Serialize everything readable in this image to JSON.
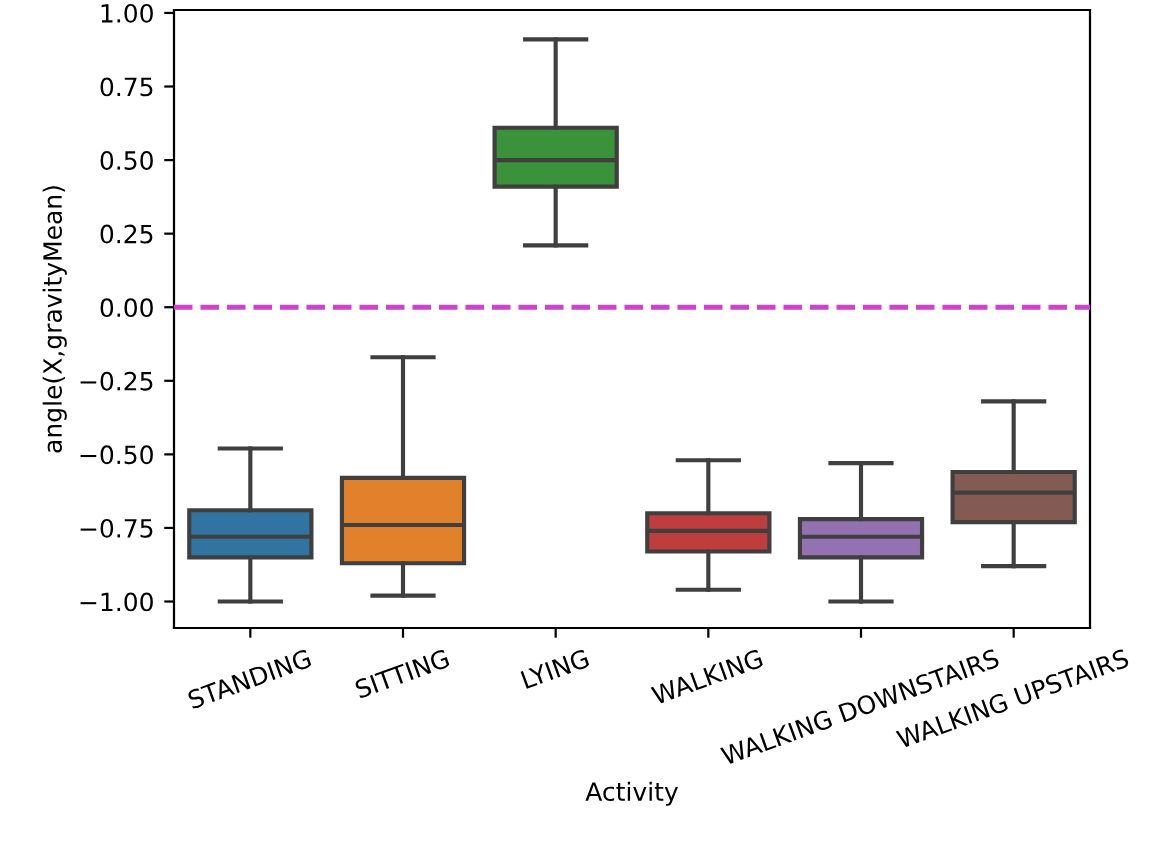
{
  "chart_data": {
    "type": "box",
    "xlabel": "Activity",
    "ylabel": "angle(X,gravityMean)",
    "categories": [
      "STANDING",
      "SITTING",
      "LYING",
      "WALKING",
      "WALKING DOWNSTAIRS",
      "WALKING UPSTAIRS"
    ],
    "colors": [
      "#3274a1",
      "#e1812c",
      "#3a923a",
      "#c03d3e",
      "#9372b2",
      "#845b53"
    ],
    "boxes": [
      {
        "low": -1.0,
        "q1": -0.85,
        "median": -0.78,
        "q3": -0.69,
        "high": -0.48
      },
      {
        "low": -0.98,
        "q1": -0.87,
        "median": -0.74,
        "q3": -0.58,
        "high": -0.17
      },
      {
        "low": 0.21,
        "q1": 0.41,
        "median": 0.5,
        "q3": 0.61,
        "high": 0.91
      },
      {
        "low": -0.96,
        "q1": -0.83,
        "median": -0.76,
        "q3": -0.7,
        "high": -0.52
      },
      {
        "low": -1.0,
        "q1": -0.85,
        "median": -0.78,
        "q3": -0.72,
        "high": -0.53
      },
      {
        "low": -0.88,
        "q1": -0.73,
        "median": -0.63,
        "q3": -0.56,
        "high": -0.32
      }
    ],
    "ylim": [
      -1.09,
      1.01
    ],
    "yticks": [
      {
        "value": -1,
        "label": "−1.00"
      },
      {
        "value": -0.75,
        "label": "−0.75"
      },
      {
        "value": -0.5,
        "label": "−0.50"
      },
      {
        "value": -0.25,
        "label": "−0.25"
      },
      {
        "value": 0,
        "label": "0.00"
      },
      {
        "value": 0.25,
        "label": "0.25"
      },
      {
        "value": 0.5,
        "label": "0.50"
      },
      {
        "value": 0.75,
        "label": "0.75"
      },
      {
        "value": 1,
        "label": "1.00"
      }
    ],
    "ref_lines": [
      {
        "axis": "y",
        "value": 0,
        "label": null,
        "color": "#cc44cc",
        "line_style": "dashed"
      }
    ]
  }
}
